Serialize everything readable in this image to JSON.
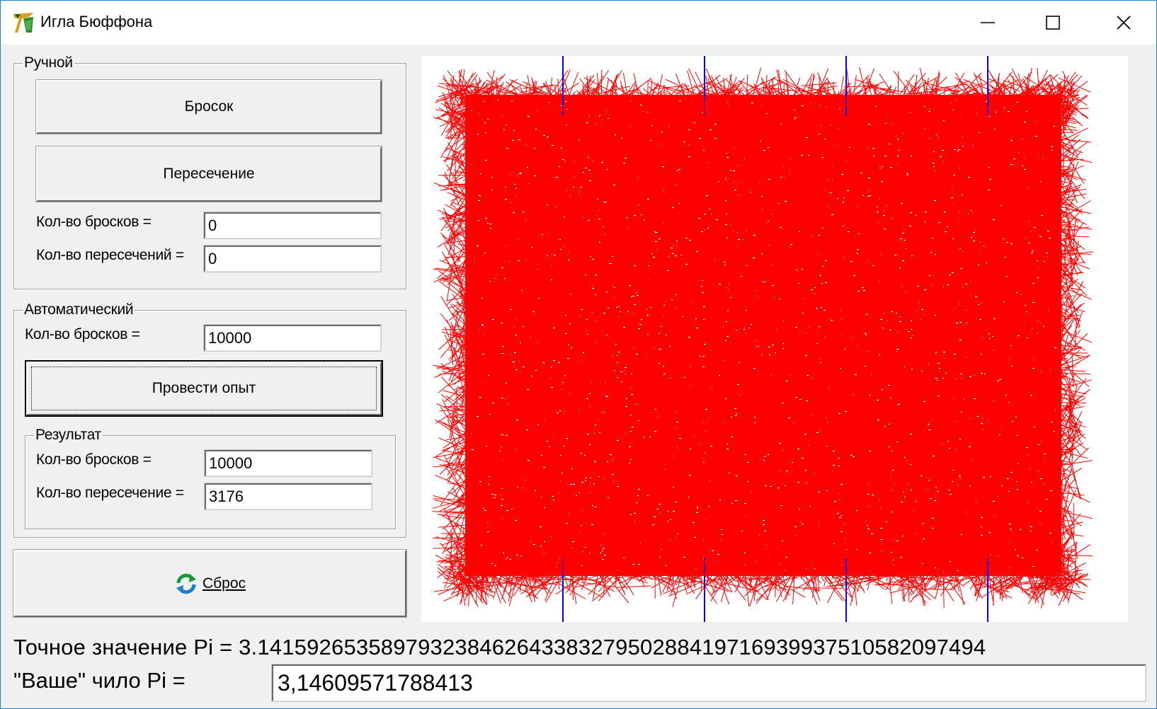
{
  "window": {
    "title": "Игла Бюффона",
    "controls": [
      "minimize-icon",
      "maximize-icon",
      "close-icon"
    ]
  },
  "manual": {
    "group_title": "Ручной",
    "throw_button": "Бросок",
    "intersection_button": "Пересечение",
    "throws_label": "Кол-во бросков =",
    "throws_value": "0",
    "intersections_label": "Кол-во пересечений =",
    "intersections_value": "0"
  },
  "auto": {
    "group_title": "Автоматический",
    "throws_label": "Кол-во бросков =",
    "throws_value": "10000",
    "run_button": "Провести опыт",
    "result": {
      "group_title": "Результат",
      "throws_label": "Кол-во бросков =",
      "throws_value": "10000",
      "intersections_label": "Кол-во пересечение =",
      "intersections_value": "3176"
    }
  },
  "reset": {
    "label": "Сброс",
    "icon": "refresh-icon"
  },
  "pi": {
    "exact_text": "Точное значение Pi = 3.14159265358979323846264338327950288419716939937510582097494",
    "your_label": "\"Ваше\" чило Pi =",
    "your_value": "3,14609571788413"
  },
  "canvas": {
    "needle_color": "#ff0000",
    "line_color": "#0000ff",
    "background": "#ffffff",
    "lines_count": 4
  }
}
